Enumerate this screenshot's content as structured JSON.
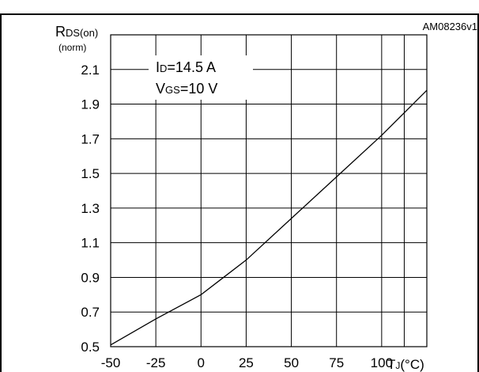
{
  "chart_data": {
    "type": "line",
    "code": "AM08236v1",
    "ylabel": {
      "main": "R",
      "sub": "DS(on)",
      "unit": "(norm)"
    },
    "xlabel": {
      "main": "T",
      "sub": "J",
      "unit": "(°C)"
    },
    "x_ticks": [
      "-50",
      "-25",
      "0",
      "25",
      "50",
      "75",
      "100"
    ],
    "y_ticks": [
      "0.5",
      "0.7",
      "0.9",
      "1.1",
      "1.3",
      "1.5",
      "1.7",
      "1.9",
      "2.1"
    ],
    "xlim": [
      -50,
      125
    ],
    "ylim": [
      0.5,
      2.3
    ],
    "grid": true,
    "conditions": [
      {
        "main": "I",
        "sub": "D",
        "rest": "=14.5 A"
      },
      {
        "main": "V",
        "sub": "GS",
        "rest": "=10 V"
      }
    ],
    "series": [
      {
        "x": [
          -50,
          -25,
          0,
          10,
          25,
          50,
          75,
          100,
          125
        ],
        "y": [
          0.51,
          0.66,
          0.8,
          0.88,
          1.0,
          1.24,
          1.48,
          1.72,
          1.98
        ]
      }
    ]
  }
}
